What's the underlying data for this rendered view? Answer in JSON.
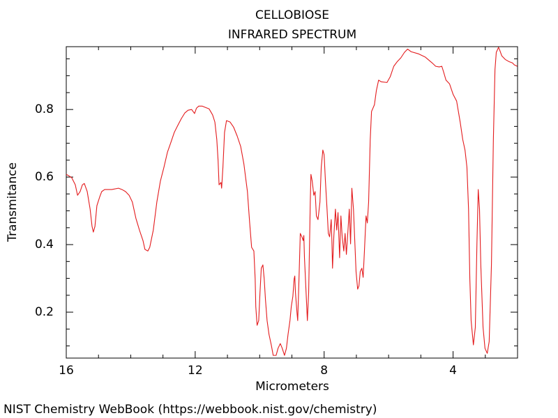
{
  "chart_data": {
    "type": "line",
    "title": "CELLOBIOSE",
    "subtitle": "INFRARED SPECTRUM",
    "x_label": "Micrometers",
    "y_label": "Transmitance",
    "source": "NIST Chemistry WebBook (https://webbook.nist.gov/chemistry)",
    "color": "#e31a1c",
    "xlim": [
      16,
      2
    ],
    "ylim": [
      0.064,
      0.986
    ],
    "xticks": [
      16,
      12,
      8,
      4
    ],
    "yticks": [
      0.2,
      0.4,
      0.6,
      0.8
    ],
    "xminorticks": [
      15,
      14,
      13,
      11,
      10,
      9,
      7,
      6,
      5,
      3
    ],
    "yminorticks": [
      0.1,
      0.15,
      0.25,
      0.3,
      0.35,
      0.45,
      0.5,
      0.55,
      0.65,
      0.7,
      0.75,
      0.85,
      0.9,
      0.95
    ],
    "x": [
      16.0,
      15.89,
      15.83,
      15.72,
      15.65,
      15.57,
      15.5,
      15.44,
      15.35,
      15.26,
      15.2,
      15.16,
      15.11,
      15.05,
      14.96,
      14.9,
      14.81,
      14.59,
      14.38,
      14.27,
      14.16,
      14.05,
      13.95,
      13.84,
      13.73,
      13.62,
      13.56,
      13.47,
      13.41,
      13.3,
      13.19,
      13.08,
      12.97,
      12.86,
      12.76,
      12.65,
      12.54,
      12.43,
      12.32,
      12.22,
      12.11,
      12.02,
      11.96,
      11.89,
      11.78,
      11.68,
      11.57,
      11.46,
      11.39,
      11.33,
      11.29,
      11.26,
      11.2,
      11.18,
      11.14,
      11.09,
      11.03,
      10.92,
      10.81,
      10.7,
      10.59,
      10.49,
      10.38,
      10.31,
      10.25,
      10.18,
      10.14,
      10.12,
      10.08,
      10.03,
      9.99,
      9.95,
      9.9,
      9.86,
      9.82,
      9.77,
      9.71,
      9.64,
      9.58,
      9.49,
      9.43,
      9.36,
      9.3,
      9.23,
      9.17,
      9.12,
      9.06,
      9.02,
      8.97,
      8.93,
      8.91,
      8.89,
      8.84,
      8.82,
      8.78,
      8.74,
      8.69,
      8.65,
      8.63,
      8.61,
      8.56,
      8.52,
      8.48,
      8.43,
      8.41,
      8.37,
      8.32,
      8.28,
      8.24,
      8.19,
      8.13,
      8.09,
      8.04,
      8.0,
      7.96,
      7.91,
      7.87,
      7.83,
      7.78,
      7.76,
      7.74,
      7.7,
      7.65,
      7.61,
      7.57,
      7.52,
      7.48,
      7.44,
      7.39,
      7.35,
      7.31,
      7.26,
      7.22,
      7.18,
      7.14,
      7.09,
      7.05,
      7.01,
      6.96,
      6.92,
      6.88,
      6.83,
      6.79,
      6.75,
      6.7,
      6.66,
      6.62,
      6.57,
      6.53,
      6.44,
      6.38,
      6.31,
      6.23,
      6.05,
      5.95,
      5.84,
      5.73,
      5.62,
      5.51,
      5.41,
      5.3,
      5.08,
      4.86,
      4.65,
      4.54,
      4.43,
      4.35,
      4.3,
      4.22,
      4.11,
      4.0,
      3.89,
      3.78,
      3.7,
      3.63,
      3.57,
      3.52,
      3.48,
      3.44,
      3.37,
      3.31,
      3.26,
      3.22,
      3.18,
      3.14,
      3.07,
      3.01,
      2.94,
      2.88,
      2.81,
      2.75,
      2.7,
      2.66,
      2.59,
      2.55,
      2.49,
      2.38,
      2.27,
      2.16,
      2.1,
      2.01
    ],
    "values": [
      0.608,
      0.602,
      0.598,
      0.577,
      0.546,
      0.557,
      0.577,
      0.581,
      0.557,
      0.505,
      0.454,
      0.437,
      0.454,
      0.515,
      0.542,
      0.557,
      0.563,
      0.563,
      0.567,
      0.563,
      0.557,
      0.546,
      0.526,
      0.478,
      0.443,
      0.412,
      0.386,
      0.381,
      0.392,
      0.443,
      0.526,
      0.588,
      0.629,
      0.674,
      0.701,
      0.732,
      0.753,
      0.773,
      0.79,
      0.798,
      0.8,
      0.788,
      0.804,
      0.81,
      0.81,
      0.806,
      0.802,
      0.784,
      0.763,
      0.711,
      0.649,
      0.577,
      0.584,
      0.567,
      0.629,
      0.732,
      0.767,
      0.763,
      0.748,
      0.722,
      0.691,
      0.639,
      0.557,
      0.464,
      0.392,
      0.381,
      0.299,
      0.216,
      0.161,
      0.175,
      0.258,
      0.33,
      0.34,
      0.299,
      0.237,
      0.175,
      0.134,
      0.103,
      0.072,
      0.072,
      0.093,
      0.107,
      0.093,
      0.072,
      0.093,
      0.134,
      0.175,
      0.216,
      0.247,
      0.299,
      0.307,
      0.258,
      0.196,
      0.175,
      0.299,
      0.433,
      0.423,
      0.412,
      0.427,
      0.361,
      0.258,
      0.175,
      0.258,
      0.526,
      0.608,
      0.588,
      0.546,
      0.557,
      0.485,
      0.474,
      0.526,
      0.629,
      0.68,
      0.666,
      0.588,
      0.505,
      0.433,
      0.423,
      0.474,
      0.412,
      0.33,
      0.423,
      0.505,
      0.443,
      0.495,
      0.361,
      0.485,
      0.423,
      0.381,
      0.433,
      0.371,
      0.443,
      0.505,
      0.402,
      0.567,
      0.505,
      0.412,
      0.32,
      0.268,
      0.278,
      0.32,
      0.33,
      0.303,
      0.381,
      0.485,
      0.464,
      0.526,
      0.711,
      0.794,
      0.814,
      0.856,
      0.887,
      0.882,
      0.88,
      0.897,
      0.928,
      0.942,
      0.953,
      0.969,
      0.979,
      0.971,
      0.965,
      0.955,
      0.938,
      0.928,
      0.926,
      0.928,
      0.913,
      0.887,
      0.876,
      0.845,
      0.825,
      0.763,
      0.711,
      0.68,
      0.629,
      0.505,
      0.299,
      0.175,
      0.103,
      0.155,
      0.402,
      0.563,
      0.505,
      0.34,
      0.155,
      0.093,
      0.078,
      0.113,
      0.34,
      0.711,
      0.918,
      0.969,
      0.984,
      0.975,
      0.959,
      0.948,
      0.942,
      0.938,
      0.932,
      0.928
    ]
  }
}
